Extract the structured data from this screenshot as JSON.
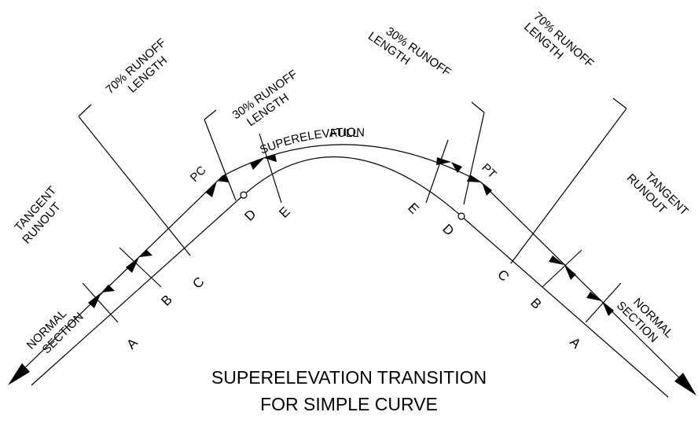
{
  "labels": {
    "left_70": [
      "70% RUNOFF",
      "LENGTH"
    ],
    "left_30": [
      "30% RUNOFF",
      "LENGTH"
    ],
    "full": [
      "FULL",
      "SUPERELEVATION"
    ],
    "right_30": [
      "30% RUNOFF",
      "LENGTH"
    ],
    "right_70": [
      "70% RUNOFF",
      "LENGTH"
    ],
    "left_tangent": [
      "TANGENT",
      "RUNOUT"
    ],
    "right_tangent": [
      "TANGENT",
      "RUNOUT"
    ],
    "left_normal": [
      "NORMAL",
      "SECTION"
    ],
    "right_normal": [
      "NORMAL",
      "SECTION"
    ]
  },
  "pc": "PC",
  "pt": "PT",
  "points_left": [
    "A",
    "B",
    "C",
    "D",
    "E"
  ],
  "points_right": [
    "E",
    "D",
    "C",
    "B",
    "A"
  ],
  "title": [
    "SUPERELEVATION TRANSITION",
    "FOR SIMPLE CURVE"
  ]
}
